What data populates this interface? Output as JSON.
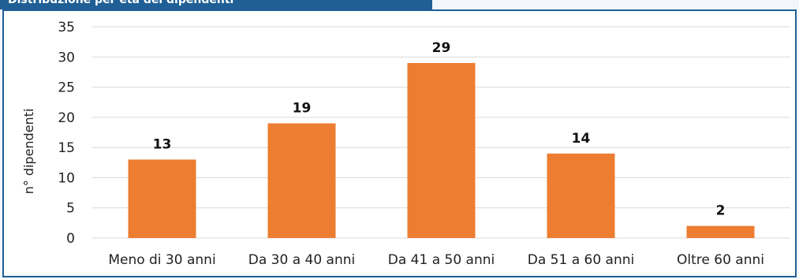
{
  "header": {
    "title_partial": "Distribuzione per età dei dipendenti"
  },
  "colors": {
    "bar": "#ed7d31",
    "frame": "#1f5f95",
    "grid": "#d9d9d9"
  },
  "chart_data": {
    "type": "bar",
    "categories": [
      "Meno di 30 anni",
      "Da 30 a 40 anni",
      "Da 41 a 50 anni",
      "Da 51 a 60 anni",
      "Oltre 60 anni"
    ],
    "values": [
      13,
      19,
      29,
      14,
      2
    ],
    "data_labels": [
      "13",
      "19",
      "29",
      "14",
      "2"
    ],
    "ylabel": "n° dipendenti",
    "xlabel": "",
    "ylim": [
      0,
      35
    ],
    "yticks": [
      0,
      5,
      10,
      15,
      20,
      25,
      30,
      35
    ],
    "grid": true,
    "legend": "none"
  }
}
